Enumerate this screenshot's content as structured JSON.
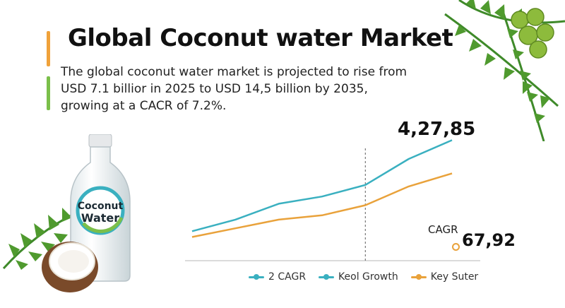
{
  "title": "Global Coconut water Market",
  "subtitle_lines": [
    "The global coconut water market is projected to rise from",
    "USD 7.1 billior in 2025 to USD 14,5 billion by 2035,",
    "growing at a CACR of 7.2%."
  ],
  "bottle_label": [
    "Coconut",
    "Water"
  ],
  "colors": {
    "accent_orange": "#f0a23a",
    "accent_green": "#7bbf4a",
    "teal": "#3ab0c0",
    "orange": "#e9a23b"
  },
  "annotations": {
    "big_value": "4,27,85",
    "cagr_label": "CAGR",
    "cagr_value": "67,92"
  },
  "chart_data": {
    "type": "line",
    "x": [
      0,
      1,
      2,
      3,
      4,
      5,
      6
    ],
    "series": [
      {
        "name": "Keol Growth",
        "color": "#3ab0c0",
        "values": [
          8,
          12,
          17.5,
          20,
          24,
          33,
          39.5
        ]
      },
      {
        "name": "Key Suter",
        "color": "#e9a23b",
        "values": [
          6,
          9,
          12,
          13.5,
          17,
          23.5,
          28
        ]
      }
    ],
    "ylim": [
      0,
      44
    ],
    "vline_at": 4,
    "grid": false,
    "legend": {
      "position": "bottom",
      "entries": [
        {
          "label": "2 CAGR",
          "color": "#3ab0c0"
        },
        {
          "label": "Keol Growth",
          "color": "#3ab0c0"
        },
        {
          "label": "Key Suter",
          "color": "#e9a23b"
        }
      ]
    }
  }
}
